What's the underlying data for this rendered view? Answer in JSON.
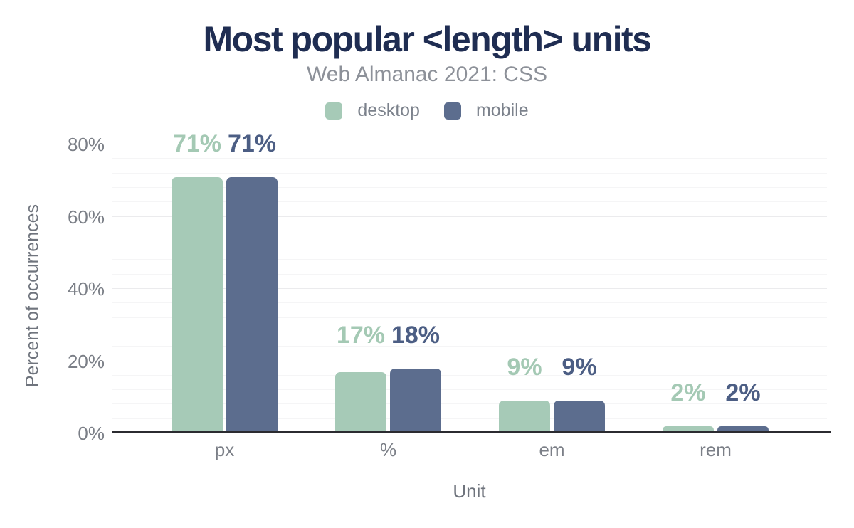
{
  "chart_data": {
    "type": "bar",
    "title": "Most popular <length> units",
    "subtitle": "Web Almanac 2021: CSS",
    "categories": [
      "px",
      "%",
      "em",
      "rem"
    ],
    "series": [
      {
        "name": "desktop",
        "color": "#a6cab7",
        "label_color": "#a4c9b4",
        "values": [
          71,
          17,
          9,
          2
        ],
        "data_labels": [
          "71%",
          "17%",
          "9%",
          "2%"
        ]
      },
      {
        "name": "mobile",
        "color": "#5c6d8e",
        "label_color": "#4c5e84",
        "values": [
          71,
          18,
          9,
          2
        ],
        "data_labels": [
          "71%",
          "18%",
          "9%",
          "2%"
        ]
      }
    ],
    "xlabel": "Unit",
    "ylabel": "Percent of occurrences",
    "ylim": [
      0,
      80
    ],
    "yticks": [
      {
        "value": 0,
        "label": "0%"
      },
      {
        "value": 20,
        "label": "20%"
      },
      {
        "value": 40,
        "label": "40%"
      },
      {
        "value": 60,
        "label": "60%"
      },
      {
        "value": 80,
        "label": "80%"
      }
    ],
    "grid": {
      "minor_step": 4,
      "major_step": 20,
      "minor_color": "#f5f5f6",
      "major_color": "#ebebed"
    },
    "legend_position": "top",
    "colors": {
      "background": "#ffffff",
      "title": "#1f2d52",
      "subtitle": "#8d9199",
      "legend_text": "#7c828c",
      "axis_text": "#7b7f87",
      "axis_title_text": "#6f747d",
      "axis_line": "#2b2b30"
    }
  }
}
